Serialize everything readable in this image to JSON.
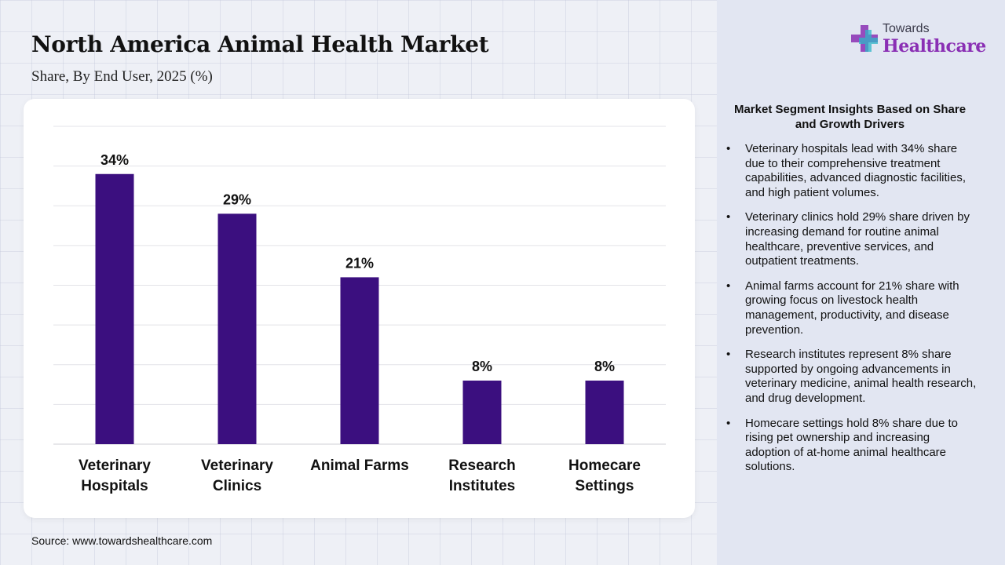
{
  "header": {
    "title": "North America Animal Health Market",
    "subtitle": "Share, By End User, 2025 (%)"
  },
  "logo": {
    "icon": "cross-plus-icon",
    "line1": "Towards",
    "line2": "Healthcare"
  },
  "colors": {
    "bar": "#3b0f7f",
    "brand": "#8a2fb4"
  },
  "chart_data": {
    "type": "bar",
    "categories": [
      [
        "Veterinary",
        "Hospitals"
      ],
      [
        "Veterinary",
        "Clinics"
      ],
      [
        "Animal Farms"
      ],
      [
        "Research",
        "Institutes"
      ],
      [
        "Homecare",
        "Settings"
      ]
    ],
    "values": [
      34,
      29,
      21,
      8,
      8
    ],
    "value_labels": [
      "34%",
      "29%",
      "21%",
      "8%",
      "8%"
    ],
    "ylim": [
      0,
      40
    ],
    "grid": true
  },
  "insights": {
    "title": "Market Segment Insights Based on Share and Growth Drivers",
    "items": [
      "Veterinary hospitals lead with 34% share due to their comprehensive treatment capabilities, advanced diagnostic facilities, and high patient volumes.",
      "Veterinary clinics hold 29% share driven by increasing demand for routine animal healthcare, preventive services, and outpatient treatments.",
      "Animal farms account for 21% share with growing focus on livestock health management, productivity, and disease prevention.",
      "Research institutes represent 8% share supported by ongoing advancements in veterinary medicine, animal health research, and drug development.",
      "Homecare settings hold 8% share due to rising pet ownership and increasing adoption of at-home animal healthcare solutions."
    ]
  },
  "footer": {
    "source": "Source: www.towardshealthcare.com"
  }
}
